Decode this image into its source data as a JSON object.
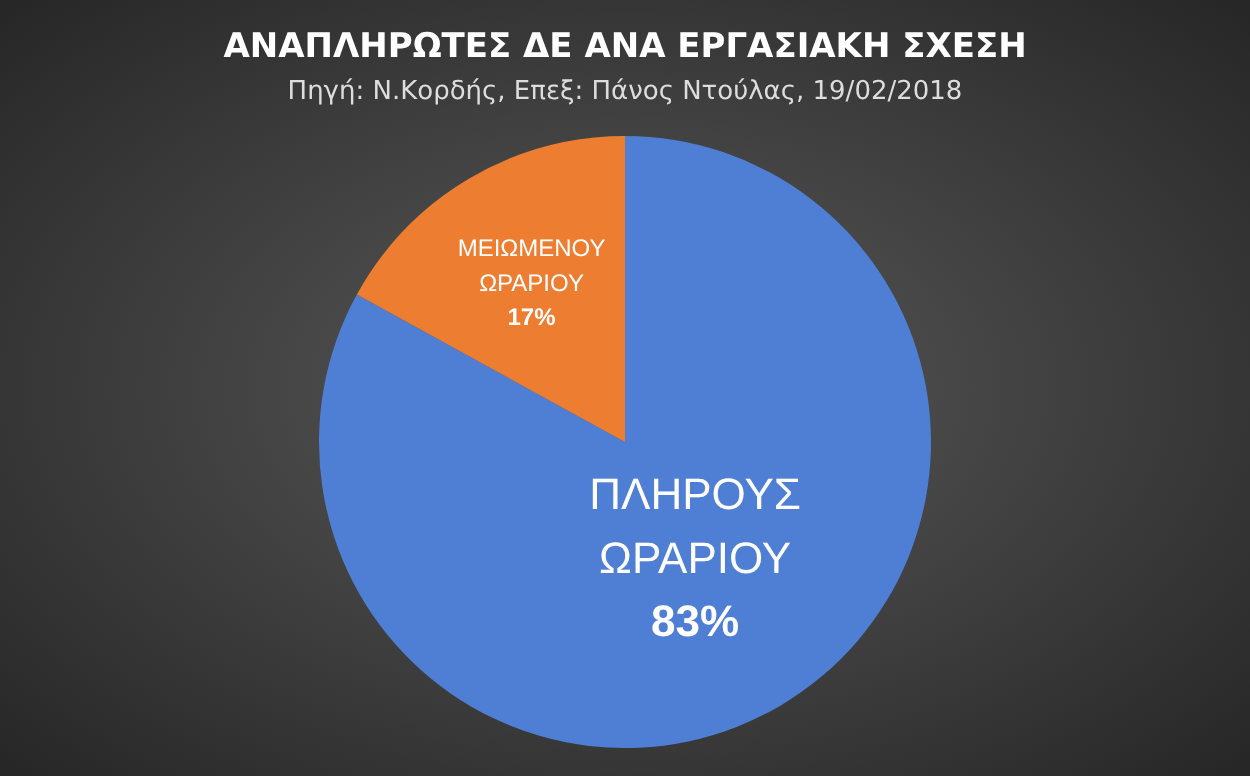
{
  "chart_data": {
    "type": "pie",
    "title": "ΑΝΑΠΛΗΡΩΤΕΣ ΔΕ ΑΝΑ ΕΡΓΑΣΙΑΚΗ ΣΧΕΣΗ",
    "subtitle": "Πηγή: Ν.Κορδής, Επεξ: Πάνος Ντούλας, 19/02/2018",
    "categories": [
      "ΠΛΗΡΟΥΣ ΩΡΑΡΙΟΥ",
      "ΜΕΙΩΜΕΝΟΥ ΩΡΑΡΙΟΥ"
    ],
    "values": [
      83,
      17
    ],
    "value_labels": [
      "83%",
      "17%"
    ],
    "colors": [
      "#4f7fd4",
      "#ed7d31"
    ],
    "legend": false
  }
}
